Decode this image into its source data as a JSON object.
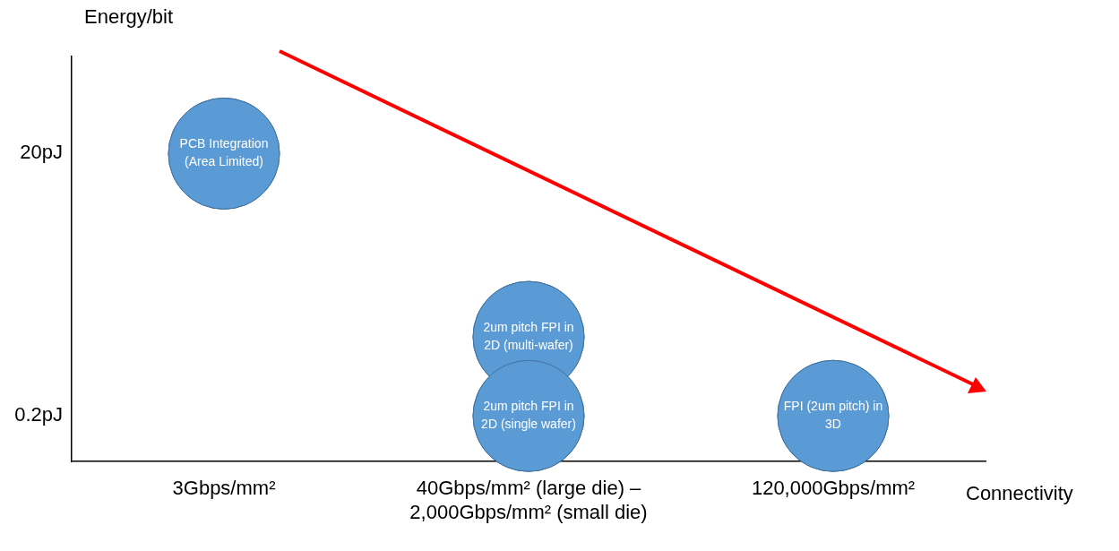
{
  "chart_data": {
    "type": "scatter",
    "marker": "circle",
    "xlabel": "Connectivity",
    "ylabel": "Energy/bit",
    "categories": [
      "3Gbps/mm²",
      "40Gbps/mm² (large die) –\n2,000Gbps/mm² (small die)",
      "120,000Gbps/mm²"
    ],
    "log": "y",
    "ylim": [
      0.09,
      110
    ],
    "yticks": [
      {
        "value": 0.2,
        "label": "0.2pJ"
      },
      {
        "value": 20,
        "label": "20pJ"
      }
    ],
    "grid": false,
    "legend": false,
    "series": [
      {
        "color": "#5b9bd5",
        "x": [
          "3Gbps/mm²",
          "40Gbps/mm² (large die) –\n2,000Gbps/mm² (small die)",
          "40Gbps/mm² (large die) –\n2,000Gbps/mm² (small die)",
          "120,000Gbps/mm²"
        ],
        "values": [
          20,
          0.8,
          0.2,
          0.2
        ]
      }
    ],
    "annotations": [
      {
        "text": "PCB Integration\n(Area Limited)",
        "x": "3Gbps/mm²",
        "y": 20
      },
      {
        "text": "2um pitch FPI in\n2D (multi-wafer)",
        "x": "40Gbps/mm² (large die) –\n2,000Gbps/mm² (small die)",
        "y": 0.8
      },
      {
        "text": "2um pitch FPI in\n2D (single wafer)",
        "x": "40Gbps/mm² (large die) –\n2,000Gbps/mm² (small die)",
        "y": 0.2
      },
      {
        "text": "FPI (2um pitch) in\n3D",
        "x": "120,000Gbps/mm²",
        "y": 0.2
      }
    ]
  }
}
